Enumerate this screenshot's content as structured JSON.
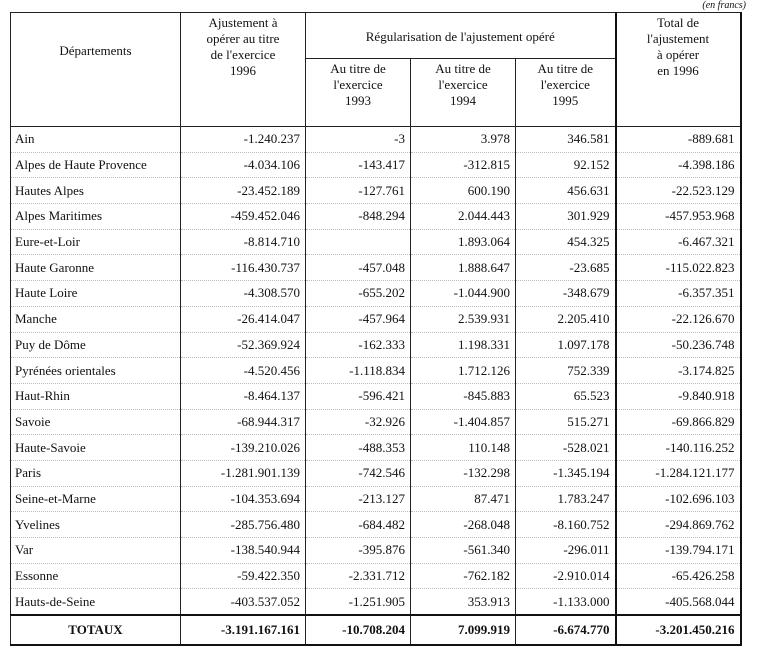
{
  "note": "(en francs)",
  "table": {
    "header": {
      "departements": "Départements",
      "ajustement": [
        "Ajustement à",
        "opérer au titre",
        "de l'exercice",
        "1996"
      ],
      "regularisation": "Régularisation de l'ajustement opéré",
      "sub": [
        [
          "Au titre de",
          "l'exercice",
          "1993"
        ],
        [
          "Au titre de",
          "l'exercice",
          "1994"
        ],
        [
          "Au titre de",
          "l'exercice",
          "1995"
        ]
      ],
      "total": [
        "Total de",
        "l'ajustement",
        "à opérer",
        "en 1996"
      ]
    },
    "rows": [
      [
        "Ain",
        "-1.240.237",
        "-3",
        "3.978",
        "346.581",
        "-889.681"
      ],
      [
        "Alpes de Haute Provence",
        "-4.034.106",
        "-143.417",
        "-312.815",
        "92.152",
        "-4.398.186"
      ],
      [
        "Hautes Alpes",
        "-23.452.189",
        "-127.761",
        "600.190",
        "456.631",
        "-22.523.129"
      ],
      [
        "Alpes Maritimes",
        "-459.452.046",
        "-848.294",
        "2.044.443",
        "301.929",
        "-457.953.968"
      ],
      [
        "Eure-et-Loir",
        "-8.814.710",
        null,
        "1.893.064",
        "454.325",
        "-6.467.321"
      ],
      [
        "Haute Garonne",
        "-116.430.737",
        "-457.048",
        "1.888.647",
        "-23.685",
        "-115.022.823"
      ],
      [
        "Haute Loire",
        "-4.308.570",
        "-655.202",
        "-1.044.900",
        "-348.679",
        "-6.357.351"
      ],
      [
        "Manche",
        "-26.414.047",
        "-457.964",
        "2.539.931",
        "2.205.410",
        "-22.126.670"
      ],
      [
        "Puy de Dôme",
        "-52.369.924",
        "-162.333",
        "1.198.331",
        "1.097.178",
        "-50.236.748"
      ],
      [
        "Pyrénées orientales",
        "-4.520.456",
        "-1.118.834",
        "1.712.126",
        "752.339",
        "-3.174.825"
      ],
      [
        "Haut-Rhin",
        "-8.464.137",
        "-596.421",
        "-845.883",
        "65.523",
        "-9.840.918"
      ],
      [
        "Savoie",
        "-68.944.317",
        "-32.926",
        "-1.404.857",
        "515.271",
        "-69.866.829"
      ],
      [
        "Haute-Savoie",
        "-139.210.026",
        "-488.353",
        "110.148",
        "-528.021",
        "-140.116.252"
      ],
      [
        "Paris",
        "-1.281.901.139",
        "-742.546",
        "-132.298",
        "-1.345.194",
        "-1.284.121.177"
      ],
      [
        "Seine-et-Marne",
        "-104.353.694",
        "-213.127",
        "87.471",
        "1.783.247",
        "-102.696.103"
      ],
      [
        "Yvelines",
        "-285.756.480",
        "-684.482",
        "-268.048",
        "-8.160.752",
        "-294.869.762"
      ],
      [
        "Var",
        "-138.540.944",
        "-395.876",
        "-561.340",
        "-296.011",
        "-139.794.171"
      ],
      [
        "Essonne",
        "-59.422.350",
        "-2.331.712",
        "-762.182",
        "-2.910.014",
        "-65.426.258"
      ],
      [
        "Hauts-de-Seine",
        "-403.537.052",
        "-1.251.905",
        "353.913",
        "-1.133.000",
        "-405.568.044"
      ]
    ],
    "totals": [
      "TOTAUX",
      "-3.191.167.161",
      "-10.708.204",
      "7.099.919",
      "-6.674.770",
      "-3.201.450.216"
    ]
  }
}
